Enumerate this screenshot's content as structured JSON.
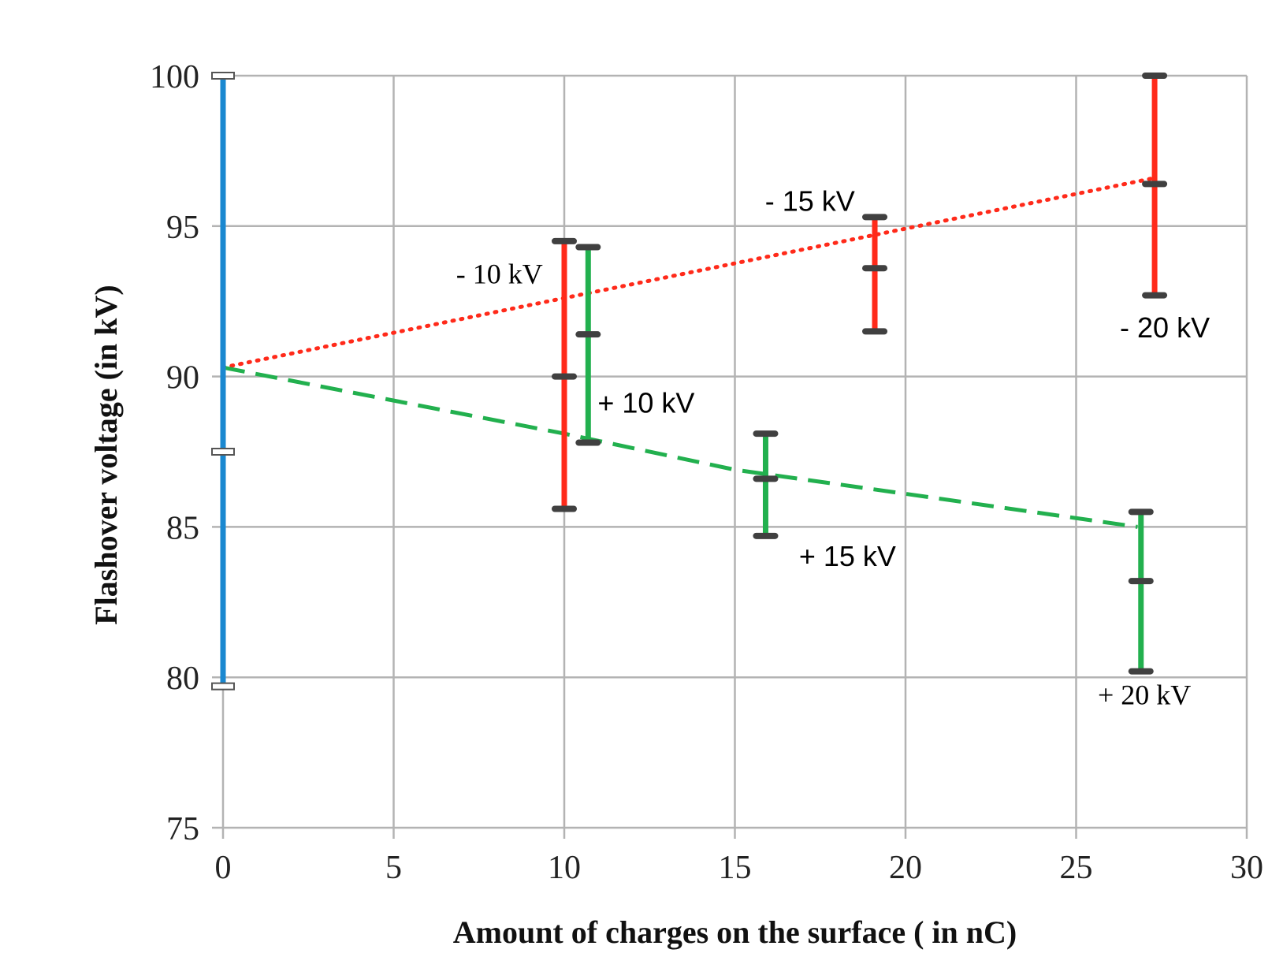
{
  "chart_data": {
    "type": "scatter",
    "title": "",
    "xlabel": "Amount of charges on the surface ( in nC)",
    "ylabel": "Flashover voltage (in kV)",
    "xlim": [
      0,
      30
    ],
    "ylim": [
      75,
      100
    ],
    "xticks": [
      "0",
      "5",
      "10",
      "15",
      "20",
      "25",
      "30"
    ],
    "yticks": [
      "75",
      "80",
      "85",
      "90",
      "95",
      "100"
    ],
    "grid": true,
    "colors": {
      "reference": "#1a88d0",
      "negative": "#ff2a1a",
      "positive": "#22b04e",
      "grid": "#b3b3b3",
      "caps": "#404040"
    },
    "error_bars": [
      {
        "group": "reference",
        "x": 0,
        "low": 79.7,
        "mid": 87.5,
        "high": 100.0
      },
      {
        "group": "negative",
        "x": 10.0,
        "low": 85.6,
        "mid": 90.0,
        "high": 94.5
      },
      {
        "group": "negative",
        "x": 19.1,
        "low": 91.5,
        "mid": 93.6,
        "high": 95.3
      },
      {
        "group": "negative",
        "x": 27.3,
        "low": 92.7,
        "mid": 96.4,
        "high": 100.0
      },
      {
        "group": "positive",
        "x": 10.7,
        "low": 87.8,
        "mid": 91.4,
        "high": 94.3
      },
      {
        "group": "positive",
        "x": 15.9,
        "low": 84.7,
        "mid": 86.6,
        "high": 88.1
      },
      {
        "group": "positive",
        "x": 26.9,
        "low": 80.2,
        "mid": 83.2,
        "high": 85.5
      }
    ],
    "trendlines": [
      {
        "group": "negative",
        "style": "dotted",
        "x": [
          0,
          27.3
        ],
        "y": [
          90.3,
          96.6
        ]
      },
      {
        "group": "positive",
        "style": "dashed",
        "x": [
          0,
          5,
          10,
          15,
          20,
          26.8
        ],
        "y": [
          90.3,
          89.2,
          88.1,
          86.9,
          86.1,
          85.0
        ]
      }
    ],
    "annotations": [
      {
        "text": "- 10 kV",
        "x": 8.1,
        "y": 93.1,
        "style": "serif"
      },
      {
        "text": "+ 10 kV",
        "x": 12.4,
        "y": 88.8,
        "style": "sans"
      },
      {
        "text": "- 15 kV",
        "x": 17.2,
        "y": 95.5,
        "style": "sans"
      },
      {
        "text": "+ 15 kV",
        "x": 18.3,
        "y": 83.7,
        "style": "sans"
      },
      {
        "text": "- 20 kV",
        "x": 27.6,
        "y": 91.3,
        "style": "sans"
      },
      {
        "text": "+ 20 kV",
        "x": 27.0,
        "y": 79.1,
        "style": "serif"
      }
    ]
  }
}
